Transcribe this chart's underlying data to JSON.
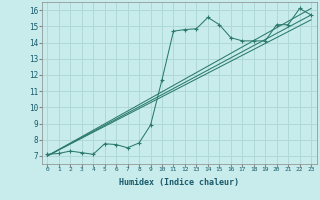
{
  "xlabel": "Humidex (Indice chaleur)",
  "background_color": "#c8ecec",
  "grid_color": "#b0d8d8",
  "line_color": "#2a7a6a",
  "xlim": [
    -0.5,
    23.5
  ],
  "ylim": [
    6.5,
    16.5
  ],
  "xticks": [
    0,
    1,
    2,
    3,
    4,
    5,
    6,
    7,
    8,
    9,
    10,
    11,
    12,
    13,
    14,
    15,
    16,
    17,
    18,
    19,
    20,
    21,
    22,
    23
  ],
  "yticks": [
    7,
    8,
    9,
    10,
    11,
    12,
    13,
    14,
    15,
    16
  ],
  "data_line": [
    [
      0,
      7.1
    ],
    [
      1,
      7.15
    ],
    [
      2,
      7.3
    ],
    [
      3,
      7.2
    ],
    [
      4,
      7.1
    ],
    [
      5,
      7.75
    ],
    [
      6,
      7.7
    ],
    [
      7,
      7.5
    ],
    [
      8,
      7.8
    ],
    [
      9,
      8.9
    ],
    [
      10,
      11.7
    ],
    [
      11,
      14.7
    ],
    [
      12,
      14.8
    ],
    [
      13,
      14.85
    ],
    [
      14,
      15.55
    ],
    [
      15,
      15.1
    ],
    [
      16,
      14.3
    ],
    [
      17,
      14.1
    ],
    [
      18,
      14.1
    ],
    [
      19,
      14.1
    ],
    [
      20,
      15.1
    ],
    [
      21,
      15.1
    ],
    [
      22,
      16.1
    ],
    [
      23,
      15.7
    ]
  ],
  "straight_lines": [
    [
      [
        0,
        7.0
      ],
      [
        23,
        16.1
      ]
    ],
    [
      [
        0,
        7.0
      ],
      [
        23,
        15.7
      ]
    ],
    [
      [
        0,
        7.0
      ],
      [
        23,
        15.4
      ]
    ]
  ]
}
